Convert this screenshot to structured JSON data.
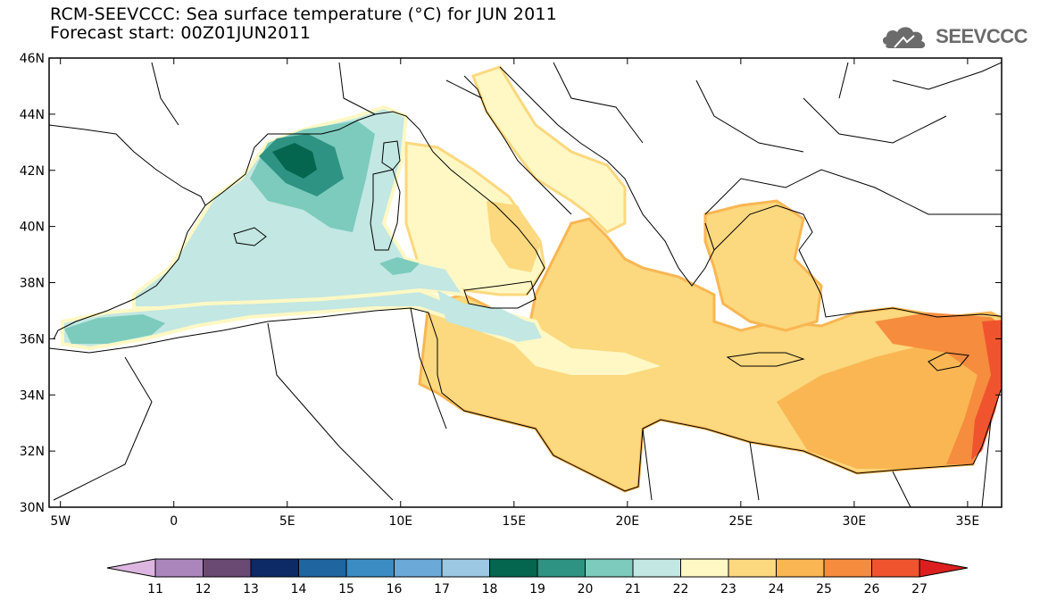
{
  "title": {
    "line1": "RCM-SEEVCCC: Sea surface temperature (°C) for JUN 2011",
    "line2": "Forecast start: 00Z01JUN2011"
  },
  "logo": {
    "text": "SEEVCCC",
    "icon": "cloud-icon"
  },
  "map": {
    "lon_range": [
      -5.5,
      36.5
    ],
    "lat_range": [
      30,
      46
    ],
    "lon_ticks": [
      {
        "value": -5,
        "label": "5W"
      },
      {
        "value": 0,
        "label": "0"
      },
      {
        "value": 5,
        "label": "5E"
      },
      {
        "value": 10,
        "label": "10E"
      },
      {
        "value": 15,
        "label": "15E"
      },
      {
        "value": 20,
        "label": "20E"
      },
      {
        "value": 25,
        "label": "25E"
      },
      {
        "value": 30,
        "label": "30E"
      },
      {
        "value": 35,
        "label": "35E"
      }
    ],
    "lat_ticks": [
      {
        "value": 30,
        "label": "30N"
      },
      {
        "value": 32,
        "label": "32N"
      },
      {
        "value": 34,
        "label": "34N"
      },
      {
        "value": 36,
        "label": "36N"
      },
      {
        "value": 38,
        "label": "38N"
      },
      {
        "value": 40,
        "label": "40N"
      },
      {
        "value": 42,
        "label": "42N"
      },
      {
        "value": 44,
        "label": "44N"
      },
      {
        "value": 46,
        "label": "46N"
      }
    ]
  },
  "colorbar": {
    "labels": [
      "11",
      "12",
      "13",
      "14",
      "15",
      "16",
      "17",
      "18",
      "19",
      "20",
      "21",
      "22",
      "23",
      "24",
      "25",
      "26",
      "27"
    ],
    "low_color": "#dcb6e0",
    "high_color": "#dc1e1e",
    "colors": [
      "#aa86bd",
      "#6a4a72",
      "#0d2a66",
      "#1f65a0",
      "#3b8cc3",
      "#6aa9d8",
      "#9cc8e3",
      "#05664f",
      "#2e9383",
      "#7ccbbd",
      "#c3e7e2",
      "#fff8c4",
      "#fcd87e",
      "#f9b652",
      "#f68c3e",
      "#f0542e"
    ]
  }
}
